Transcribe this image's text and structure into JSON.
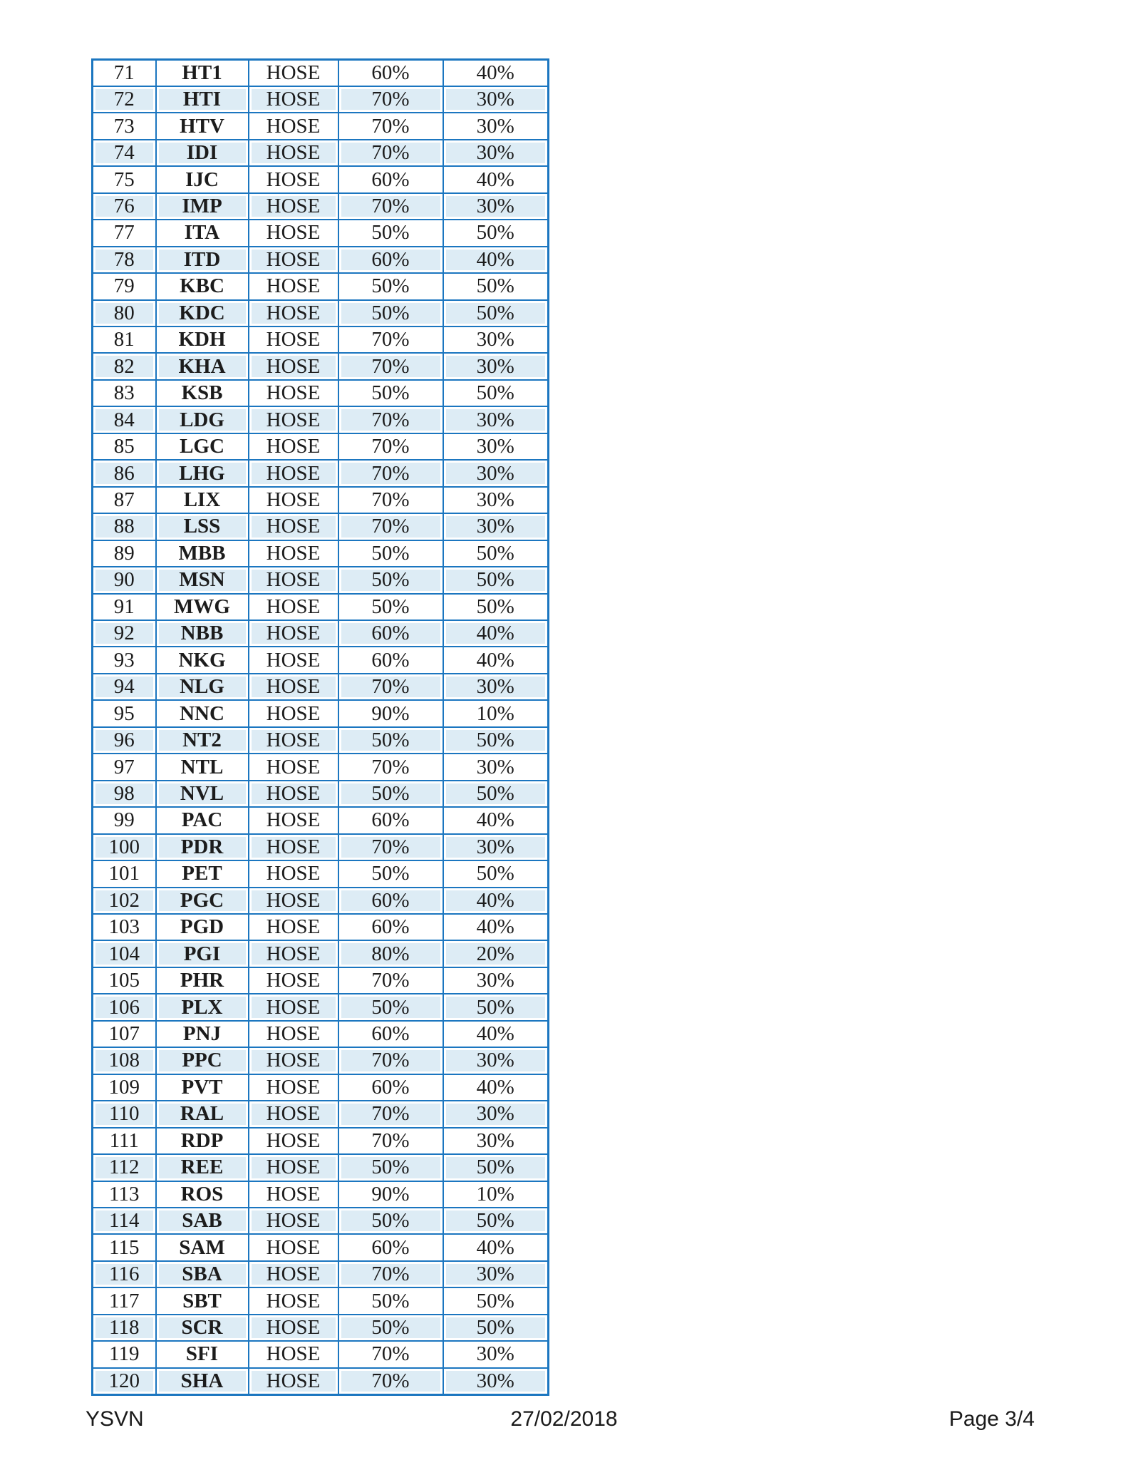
{
  "colors": {
    "table_border": "#1b76c0",
    "row_shade": "#ddecf5",
    "text": "#1c1c1c"
  },
  "table": {
    "columns": [
      "no",
      "ticker",
      "exchange",
      "pct_a",
      "pct_b"
    ],
    "rows": [
      {
        "no": "71",
        "ticker": "HT1",
        "exchange": "HOSE",
        "pct_a": "60%",
        "pct_b": "40%"
      },
      {
        "no": "72",
        "ticker": "HTI",
        "exchange": "HOSE",
        "pct_a": "70%",
        "pct_b": "30%"
      },
      {
        "no": "73",
        "ticker": "HTV",
        "exchange": "HOSE",
        "pct_a": "70%",
        "pct_b": "30%"
      },
      {
        "no": "74",
        "ticker": "IDI",
        "exchange": "HOSE",
        "pct_a": "70%",
        "pct_b": "30%"
      },
      {
        "no": "75",
        "ticker": "IJC",
        "exchange": "HOSE",
        "pct_a": "60%",
        "pct_b": "40%"
      },
      {
        "no": "76",
        "ticker": "IMP",
        "exchange": "HOSE",
        "pct_a": "70%",
        "pct_b": "30%"
      },
      {
        "no": "77",
        "ticker": "ITA",
        "exchange": "HOSE",
        "pct_a": "50%",
        "pct_b": "50%"
      },
      {
        "no": "78",
        "ticker": "ITD",
        "exchange": "HOSE",
        "pct_a": "60%",
        "pct_b": "40%"
      },
      {
        "no": "79",
        "ticker": "KBC",
        "exchange": "HOSE",
        "pct_a": "50%",
        "pct_b": "50%"
      },
      {
        "no": "80",
        "ticker": "KDC",
        "exchange": "HOSE",
        "pct_a": "50%",
        "pct_b": "50%"
      },
      {
        "no": "81",
        "ticker": "KDH",
        "exchange": "HOSE",
        "pct_a": "70%",
        "pct_b": "30%"
      },
      {
        "no": "82",
        "ticker": "KHA",
        "exchange": "HOSE",
        "pct_a": "70%",
        "pct_b": "30%"
      },
      {
        "no": "83",
        "ticker": "KSB",
        "exchange": "HOSE",
        "pct_a": "50%",
        "pct_b": "50%"
      },
      {
        "no": "84",
        "ticker": "LDG",
        "exchange": "HOSE",
        "pct_a": "70%",
        "pct_b": "30%"
      },
      {
        "no": "85",
        "ticker": "LGC",
        "exchange": "HOSE",
        "pct_a": "70%",
        "pct_b": "30%"
      },
      {
        "no": "86",
        "ticker": "LHG",
        "exchange": "HOSE",
        "pct_a": "70%",
        "pct_b": "30%"
      },
      {
        "no": "87",
        "ticker": "LIX",
        "exchange": "HOSE",
        "pct_a": "70%",
        "pct_b": "30%"
      },
      {
        "no": "88",
        "ticker": "LSS",
        "exchange": "HOSE",
        "pct_a": "70%",
        "pct_b": "30%"
      },
      {
        "no": "89",
        "ticker": "MBB",
        "exchange": "HOSE",
        "pct_a": "50%",
        "pct_b": "50%"
      },
      {
        "no": "90",
        "ticker": "MSN",
        "exchange": "HOSE",
        "pct_a": "50%",
        "pct_b": "50%"
      },
      {
        "no": "91",
        "ticker": "MWG",
        "exchange": "HOSE",
        "pct_a": "50%",
        "pct_b": "50%"
      },
      {
        "no": "92",
        "ticker": "NBB",
        "exchange": "HOSE",
        "pct_a": "60%",
        "pct_b": "40%"
      },
      {
        "no": "93",
        "ticker": "NKG",
        "exchange": "HOSE",
        "pct_a": "60%",
        "pct_b": "40%"
      },
      {
        "no": "94",
        "ticker": "NLG",
        "exchange": "HOSE",
        "pct_a": "70%",
        "pct_b": "30%"
      },
      {
        "no": "95",
        "ticker": "NNC",
        "exchange": "HOSE",
        "pct_a": "90%",
        "pct_b": "10%"
      },
      {
        "no": "96",
        "ticker": "NT2",
        "exchange": "HOSE",
        "pct_a": "50%",
        "pct_b": "50%"
      },
      {
        "no": "97",
        "ticker": "NTL",
        "exchange": "HOSE",
        "pct_a": "70%",
        "pct_b": "30%"
      },
      {
        "no": "98",
        "ticker": "NVL",
        "exchange": "HOSE",
        "pct_a": "50%",
        "pct_b": "50%"
      },
      {
        "no": "99",
        "ticker": "PAC",
        "exchange": "HOSE",
        "pct_a": "60%",
        "pct_b": "40%"
      },
      {
        "no": "100",
        "ticker": "PDR",
        "exchange": "HOSE",
        "pct_a": "70%",
        "pct_b": "30%"
      },
      {
        "no": "101",
        "ticker": "PET",
        "exchange": "HOSE",
        "pct_a": "50%",
        "pct_b": "50%"
      },
      {
        "no": "102",
        "ticker": "PGC",
        "exchange": "HOSE",
        "pct_a": "60%",
        "pct_b": "40%"
      },
      {
        "no": "103",
        "ticker": "PGD",
        "exchange": "HOSE",
        "pct_a": "60%",
        "pct_b": "40%"
      },
      {
        "no": "104",
        "ticker": "PGI",
        "exchange": "HOSE",
        "pct_a": "80%",
        "pct_b": "20%"
      },
      {
        "no": "105",
        "ticker": "PHR",
        "exchange": "HOSE",
        "pct_a": "70%",
        "pct_b": "30%"
      },
      {
        "no": "106",
        "ticker": "PLX",
        "exchange": "HOSE",
        "pct_a": "50%",
        "pct_b": "50%"
      },
      {
        "no": "107",
        "ticker": "PNJ",
        "exchange": "HOSE",
        "pct_a": "60%",
        "pct_b": "40%"
      },
      {
        "no": "108",
        "ticker": "PPC",
        "exchange": "HOSE",
        "pct_a": "70%",
        "pct_b": "30%"
      },
      {
        "no": "109",
        "ticker": "PVT",
        "exchange": "HOSE",
        "pct_a": "60%",
        "pct_b": "40%"
      },
      {
        "no": "110",
        "ticker": "RAL",
        "exchange": "HOSE",
        "pct_a": "70%",
        "pct_b": "30%"
      },
      {
        "no": "111",
        "ticker": "RDP",
        "exchange": "HOSE",
        "pct_a": "70%",
        "pct_b": "30%"
      },
      {
        "no": "112",
        "ticker": "REE",
        "exchange": "HOSE",
        "pct_a": "50%",
        "pct_b": "50%"
      },
      {
        "no": "113",
        "ticker": "ROS",
        "exchange": "HOSE",
        "pct_a": "90%",
        "pct_b": "10%"
      },
      {
        "no": "114",
        "ticker": "SAB",
        "exchange": "HOSE",
        "pct_a": "50%",
        "pct_b": "50%"
      },
      {
        "no": "115",
        "ticker": "SAM",
        "exchange": "HOSE",
        "pct_a": "60%",
        "pct_b": "40%"
      },
      {
        "no": "116",
        "ticker": "SBA",
        "exchange": "HOSE",
        "pct_a": "70%",
        "pct_b": "30%"
      },
      {
        "no": "117",
        "ticker": "SBT",
        "exchange": "HOSE",
        "pct_a": "50%",
        "pct_b": "50%"
      },
      {
        "no": "118",
        "ticker": "SCR",
        "exchange": "HOSE",
        "pct_a": "50%",
        "pct_b": "50%"
      },
      {
        "no": "119",
        "ticker": "SFI",
        "exchange": "HOSE",
        "pct_a": "70%",
        "pct_b": "30%"
      },
      {
        "no": "120",
        "ticker": "SHA",
        "exchange": "HOSE",
        "pct_a": "70%",
        "pct_b": "30%"
      }
    ]
  },
  "footer": {
    "left": "YSVN",
    "center": "27/02/2018",
    "right": "Page 3/4"
  }
}
